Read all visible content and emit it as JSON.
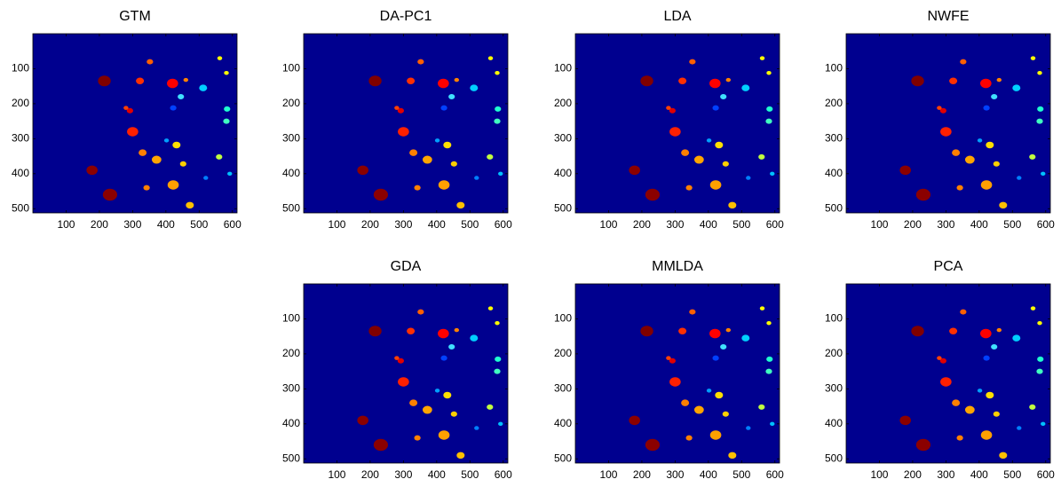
{
  "chart_data": [
    {
      "type": "image",
      "title": "GTM",
      "xlim": [
        0,
        614
      ],
      "ylim": [
        512,
        0
      ],
      "xticks": [
        100,
        200,
        300,
        400,
        500,
        600
      ],
      "yticks": [
        100,
        200,
        300,
        400,
        500
      ],
      "background": "#00008f"
    },
    {
      "type": "image",
      "title": "DA-PC1",
      "xlim": [
        0,
        614
      ],
      "ylim": [
        512,
        0
      ],
      "xticks": [
        100,
        200,
        300,
        400,
        500,
        600
      ],
      "yticks": [
        100,
        200,
        300,
        400,
        500
      ],
      "background": "#00008f"
    },
    {
      "type": "image",
      "title": "LDA",
      "xlim": [
        0,
        614
      ],
      "ylim": [
        512,
        0
      ],
      "xticks": [
        100,
        200,
        300,
        400,
        500,
        600
      ],
      "yticks": [
        100,
        200,
        300,
        400,
        500
      ],
      "background": "#00008f"
    },
    {
      "type": "image",
      "title": "NWFE",
      "xlim": [
        0,
        614
      ],
      "ylim": [
        512,
        0
      ],
      "xticks": [
        100,
        200,
        300,
        400,
        500,
        600
      ],
      "yticks": [
        100,
        200,
        300,
        400,
        500
      ],
      "background": "#00008f"
    },
    {
      "type": "image",
      "title": "GDA",
      "xlim": [
        0,
        614
      ],
      "ylim": [
        512,
        0
      ],
      "xticks": [
        100,
        200,
        300,
        400,
        500,
        600
      ],
      "yticks": [
        100,
        200,
        300,
        400,
        500
      ],
      "background": "#00008f"
    },
    {
      "type": "image",
      "title": "MMLDA",
      "xlim": [
        0,
        614
      ],
      "ylim": [
        512,
        0
      ],
      "xticks": [
        100,
        200,
        300,
        400,
        500,
        600
      ],
      "yticks": [
        100,
        200,
        300,
        400,
        500
      ],
      "background": "#00008f"
    },
    {
      "type": "image",
      "title": "PCA",
      "xlim": [
        0,
        614
      ],
      "ylim": [
        512,
        0
      ],
      "xticks": [
        100,
        200,
        300,
        400,
        500,
        600
      ],
      "yticks": [
        100,
        200,
        300,
        400,
        500
      ],
      "background": "#00008f"
    }
  ]
}
